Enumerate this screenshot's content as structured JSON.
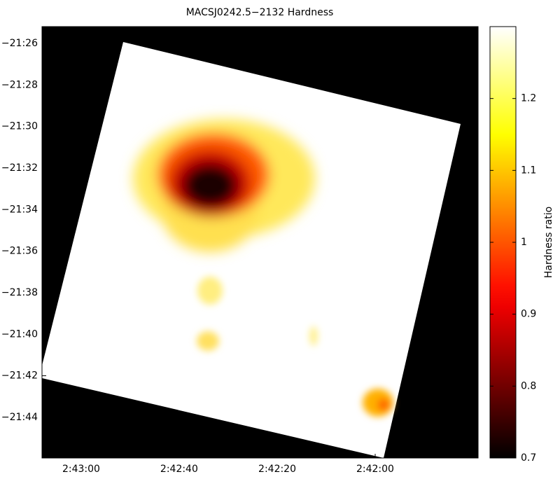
{
  "chart_data": {
    "type": "image",
    "title": "MACSJ0242.5−2132 Hardness",
    "xlim": [
      40.7833,
      40.4125
    ],
    "xticks": [
      {
        "value": 40.75,
        "label": "2:43:00"
      },
      {
        "value": 40.6667,
        "label": "2:42:40"
      },
      {
        "value": 40.5833,
        "label": "2:42:20"
      },
      {
        "value": 40.5,
        "label": "2:42:00"
      }
    ],
    "ylim": [
      -21.766,
      -21.4198
    ],
    "yticks": [
      {
        "value": -21.4333,
        "label": "−21:26"
      },
      {
        "value": -21.4667,
        "label": "−21:28"
      },
      {
        "value": -21.5,
        "label": "−21:30"
      },
      {
        "value": -21.5333,
        "label": "−21:32"
      },
      {
        "value": -21.5667,
        "label": "−21:34"
      },
      {
        "value": -21.6,
        "label": "−21:36"
      },
      {
        "value": -21.6333,
        "label": "−21:38"
      },
      {
        "value": -21.6667,
        "label": "−21:40"
      },
      {
        "value": -21.7,
        "label": "−21:42"
      },
      {
        "value": -21.7333,
        "label": "−21:44"
      }
    ],
    "colormap": "hot",
    "colorbar_label": "Hardness ratio",
    "clim": [
      0.7,
      1.3
    ],
    "cticks": [
      0.7,
      0.8,
      0.9,
      1,
      1.1,
      1.2
    ]
  }
}
